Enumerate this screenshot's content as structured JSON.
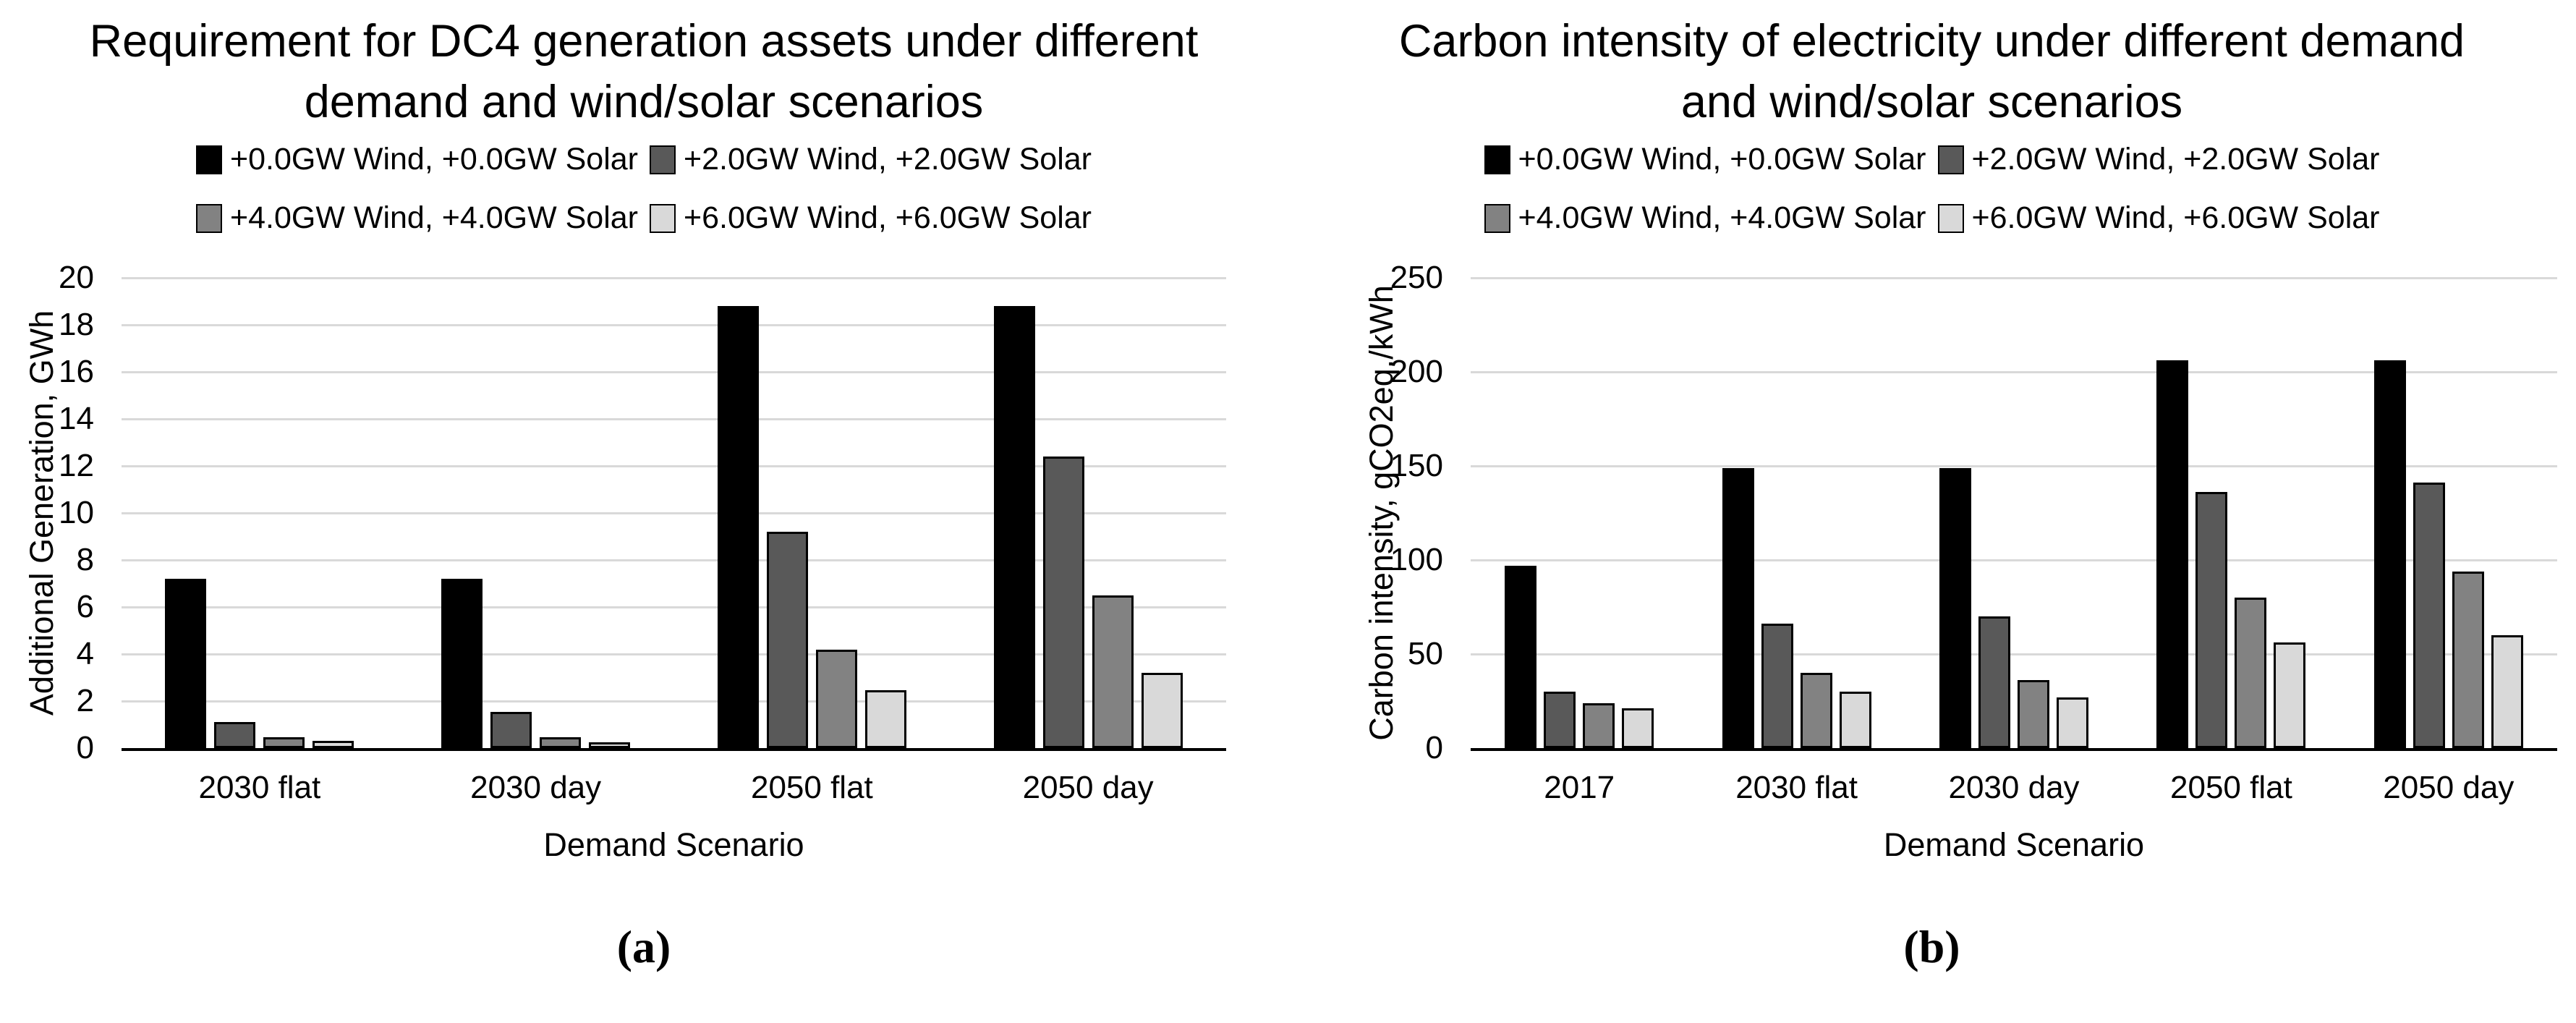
{
  "page": {
    "background": "#ffffff"
  },
  "styles": {
    "grid_color": "#d9d9d9",
    "axis_color": "#000000",
    "bar_border_color": "#000000",
    "text_color": "#000000"
  },
  "chart_data": [
    {
      "id": "a",
      "type": "bar",
      "title_lines": [
        "Requirement for DC4 generation assets under different",
        "demand and wind/solar scenarios"
      ],
      "categories": [
        "2030 flat",
        "2030 day",
        "2050 flat",
        "2050 day"
      ],
      "series": [
        {
          "name": "+0.0GW Wind, +0.0GW Solar",
          "color": "#000000",
          "values": [
            7.2,
            7.2,
            18.8,
            18.8
          ]
        },
        {
          "name": "+2.0GW Wind, +2.0GW Solar",
          "color": "#595959",
          "values": [
            1.1,
            1.55,
            9.2,
            12.4
          ]
        },
        {
          "name": "+4.0GW Wind, +4.0GW Solar",
          "color": "#828282",
          "values": [
            0.45,
            0.45,
            4.2,
            6.5
          ]
        },
        {
          "name": "+6.0GW Wind, +6.0GW Solar",
          "color": "#d9d9d9",
          "values": [
            0.3,
            0.25,
            2.45,
            3.2
          ]
        }
      ],
      "ylabel": "Additional Generation, GWh",
      "xlabel": "Demand Scenario",
      "ylim": [
        0,
        20
      ],
      "ytick_step": 2,
      "grid": true,
      "legend_position": "top",
      "caption": "(a)"
    },
    {
      "id": "b",
      "type": "bar",
      "title_lines": [
        "Carbon intensity of electricity under different demand",
        "and wind/solar scenarios"
      ],
      "categories": [
        "2017",
        "2030 flat",
        "2030 day",
        "2050 flat",
        "2050 day"
      ],
      "series": [
        {
          "name": "+0.0GW Wind, +0.0GW Solar",
          "color": "#000000",
          "values": [
            97,
            149,
            149,
            206,
            206
          ]
        },
        {
          "name": "+2.0GW Wind, +2.0GW Solar",
          "color": "#595959",
          "values": [
            30,
            66,
            70,
            136,
            141
          ]
        },
        {
          "name": "+4.0GW Wind, +4.0GW Solar",
          "color": "#828282",
          "values": [
            24,
            40,
            36,
            80,
            94
          ]
        },
        {
          "name": "+6.0GW Wind, +6.0GW Solar",
          "color": "#d9d9d9",
          "values": [
            21,
            30,
            27,
            56,
            60
          ]
        }
      ],
      "ylabel": "Carbon intensity, gCO2eq./kWh",
      "xlabel": "Demand Scenario",
      "ylim": [
        0,
        250
      ],
      "ytick_step": 50,
      "grid": true,
      "legend_position": "top",
      "caption": "(b)"
    }
  ]
}
